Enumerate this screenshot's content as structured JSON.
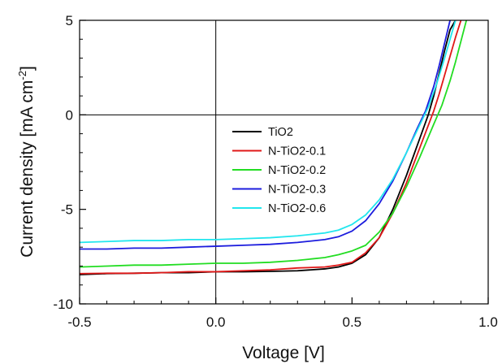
{
  "chart_data": {
    "type": "line",
    "title": "",
    "xlabel": "Voltage [V]",
    "ylabel_main": "Current density [mA cm",
    "ylabel_sup": "-2",
    "ylabel_tail": "]",
    "xlim": [
      -0.5,
      1.0
    ],
    "ylim": [
      -10,
      5
    ],
    "xticks": [
      -0.5,
      0.0,
      0.5,
      1.0
    ],
    "xtick_labels": [
      "-0.5",
      "0.0",
      "0.5",
      "1.0"
    ],
    "yticks": [
      -10,
      -5,
      0,
      5
    ],
    "ytick_labels": [
      "-10",
      "-5",
      "0",
      "5"
    ],
    "x_minor_step": 0.1,
    "y_minor_step": 1,
    "zero_lines": true,
    "grid": false,
    "legend_position": "center",
    "series": [
      {
        "name": "TiO2",
        "color": "#000000",
        "x": [
          -0.5,
          -0.4,
          -0.3,
          -0.2,
          -0.1,
          0.0,
          0.1,
          0.2,
          0.3,
          0.4,
          0.45,
          0.5,
          0.55,
          0.6,
          0.65,
          0.7,
          0.75,
          0.78,
          0.8,
          0.82,
          0.84,
          0.86,
          0.88
        ],
        "y": [
          -8.45,
          -8.4,
          -8.38,
          -8.35,
          -8.35,
          -8.3,
          -8.3,
          -8.28,
          -8.25,
          -8.15,
          -8.05,
          -7.85,
          -7.4,
          -6.5,
          -5.0,
          -3.2,
          -1.2,
          0.0,
          1.0,
          2.2,
          3.4,
          4.5,
          5.0
        ]
      },
      {
        "name": "N-TiO2-0.1",
        "color": "#e01818",
        "x": [
          -0.5,
          -0.4,
          -0.3,
          -0.2,
          -0.1,
          0.0,
          0.1,
          0.2,
          0.3,
          0.4,
          0.45,
          0.5,
          0.55,
          0.6,
          0.65,
          0.7,
          0.75,
          0.8,
          0.82,
          0.84,
          0.86,
          0.88,
          0.9
        ],
        "y": [
          -8.4,
          -8.38,
          -8.38,
          -8.35,
          -8.3,
          -8.3,
          -8.25,
          -8.2,
          -8.1,
          -8.05,
          -7.95,
          -7.8,
          -7.3,
          -6.5,
          -5.2,
          -3.6,
          -1.7,
          0.2,
          1.1,
          2.1,
          3.1,
          4.1,
          5.0
        ]
      },
      {
        "name": "N-TiO2-0.2",
        "color": "#22dd22",
        "x": [
          -0.5,
          -0.4,
          -0.3,
          -0.2,
          -0.1,
          0.0,
          0.1,
          0.2,
          0.3,
          0.4,
          0.45,
          0.5,
          0.55,
          0.6,
          0.65,
          0.7,
          0.75,
          0.8,
          0.83,
          0.86,
          0.88,
          0.9,
          0.92
        ],
        "y": [
          -8.05,
          -8.0,
          -7.95,
          -7.95,
          -7.9,
          -7.85,
          -7.85,
          -7.8,
          -7.7,
          -7.55,
          -7.4,
          -7.2,
          -6.9,
          -6.2,
          -5.2,
          -3.8,
          -2.2,
          -0.5,
          0.5,
          1.8,
          2.8,
          3.9,
          5.0
        ]
      },
      {
        "name": "N-TiO2-0.3",
        "color": "#1c1cdd",
        "x": [
          -0.5,
          -0.4,
          -0.3,
          -0.2,
          -0.1,
          0.0,
          0.1,
          0.2,
          0.3,
          0.4,
          0.45,
          0.5,
          0.55,
          0.6,
          0.65,
          0.7,
          0.74,
          0.77,
          0.8,
          0.82,
          0.84,
          0.86
        ],
        "y": [
          -7.1,
          -7.1,
          -7.05,
          -7.05,
          -7.0,
          -6.95,
          -6.9,
          -6.85,
          -6.75,
          -6.6,
          -6.45,
          -6.15,
          -5.6,
          -4.7,
          -3.5,
          -2.0,
          -0.7,
          0.2,
          1.5,
          2.6,
          3.8,
          5.0
        ]
      },
      {
        "name": "N-TiO2-0.6",
        "color": "#22e6ee",
        "x": [
          -0.5,
          -0.4,
          -0.3,
          -0.2,
          -0.1,
          0.0,
          0.1,
          0.2,
          0.3,
          0.4,
          0.45,
          0.5,
          0.55,
          0.6,
          0.65,
          0.7,
          0.75,
          0.78,
          0.81,
          0.84,
          0.86,
          0.88
        ],
        "y": [
          -6.75,
          -6.7,
          -6.65,
          -6.65,
          -6.6,
          -6.6,
          -6.55,
          -6.5,
          -6.4,
          -6.25,
          -6.1,
          -5.8,
          -5.3,
          -4.5,
          -3.4,
          -2.0,
          -0.5,
          0.4,
          1.6,
          3.0,
          4.0,
          5.0
        ]
      }
    ]
  }
}
